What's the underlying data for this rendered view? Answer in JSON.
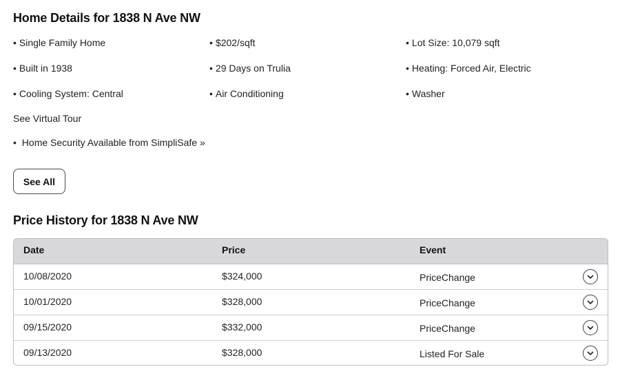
{
  "home_details": {
    "title": "Home Details for 1838 N Ave NW",
    "items": [
      "Single Family Home",
      "$202/sqft",
      "Lot Size: 10,079 sqft",
      "Built in 1938",
      "29 Days on Trulia",
      "Heating: Forced Air, Electric",
      "Cooling System: Central",
      "Air Conditioning",
      "Washer"
    ],
    "virtual_tour_label": "See Virtual Tour",
    "security_text": "Home Security Available from",
    "security_link": "SimpliSafe »",
    "see_all_label": "See All"
  },
  "price_history": {
    "title": "Price History for 1838 N Ave NW",
    "columns": [
      "Date",
      "Price",
      "Event"
    ],
    "rows": [
      {
        "date": "10/08/2020",
        "price": "$324,000",
        "event": "PriceChange"
      },
      {
        "date": "10/01/2020",
        "price": "$328,000",
        "event": "PriceChange"
      },
      {
        "date": "09/15/2020",
        "price": "$332,000",
        "event": "PriceChange"
      },
      {
        "date": "09/13/2020",
        "price": "$328,000",
        "event": "Listed For Sale"
      }
    ],
    "row_expand_icon": "chevron-down-icon"
  }
}
